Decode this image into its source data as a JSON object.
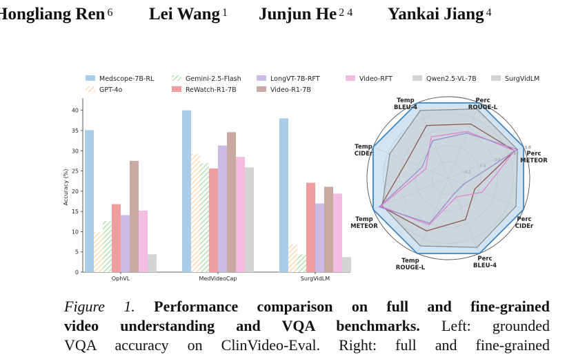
{
  "authors": [
    {
      "name": "Hongliang Ren",
      "aff": "6"
    },
    {
      "name": "Lei Wang",
      "aff": "1"
    },
    {
      "name": "Junjun He",
      "aff": "2 4"
    },
    {
      "name": "Yankai Jiang",
      "aff": "4"
    }
  ],
  "caption": {
    "label": "Figure 1.",
    "bold_text": "Performance comparison on full and fine-grained video understanding and VQA benchmarks.",
    "line1_bold": "Performance comparison on full and fine-grained",
    "line2_bold": "video understanding and VQA benchmarks.",
    "line2_rest": "Left: grounded",
    "line3": "VQA accuracy on ClinVideo-Eval. Right: full and fine-grained"
  },
  "colors": {
    "Medscope-7B-RL": "#a8cde8",
    "GPT-4o": "#fdd5a6",
    "Gemini-2.5-Flash": "#a6dca5",
    "ReWatch-R1-7B": "#ee9e9e",
    "LongVT-7B-RFT": "#cbbce5",
    "Video-R1-7B": "#c9aaa3",
    "Video-RFT": "#f3bde1",
    "Qwen2.5-VL-7B": "#d3d3d3",
    "SurgVidLM": "#d3d3d3"
  },
  "chart_data": [
    {
      "type": "bar",
      "title": "",
      "xlabel": "",
      "ylabel": "Accuracy (%)",
      "ylim": [
        0,
        42
      ],
      "yticks": [
        0,
        5,
        10,
        15,
        20,
        25,
        30,
        35,
        40
      ],
      "categories": [
        "OphVL",
        "MedVideoCap",
        "SurgVidLM"
      ],
      "legend": {
        "placement": "top",
        "columns": 6
      },
      "grid": false,
      "series": [
        {
          "name": "Medscope-7B-RL",
          "values": [
            35.1,
            40.0,
            38.0
          ],
          "hatch": false
        },
        {
          "name": "GPT-4o",
          "values": [
            9.9,
            29.2,
            6.9
          ],
          "hatch": true
        },
        {
          "name": "Gemini-2.5-Flash",
          "values": [
            12.6,
            26.9,
            4.4
          ],
          "hatch": true
        },
        {
          "name": "ReWatch-R1-7B",
          "values": [
            16.8,
            25.6,
            22.1
          ],
          "hatch": false
        },
        {
          "name": "LongVT-7B-RFT",
          "values": [
            14.1,
            31.3,
            17.0
          ],
          "hatch": false
        },
        {
          "name": "Video-R1-7B",
          "values": [
            27.5,
            34.6,
            21.1
          ],
          "hatch": false
        },
        {
          "name": "Video-RFT",
          "values": [
            15.2,
            28.5,
            19.4
          ],
          "hatch": false
        },
        {
          "name": "Qwen2.5-VL-7B",
          "values": [
            null,
            25.9,
            null
          ],
          "hatch": false
        },
        {
          "name": "SurgVidLM",
          "values": [
            4.4,
            null,
            3.7
          ],
          "hatch": false
        }
      ]
    },
    {
      "type": "radar",
      "title": "",
      "axes": [
        {
          "label": [
            "Perc",
            "ROUGE-L"
          ]
        },
        {
          "label": [
            "Perc",
            "METEOR"
          ]
        },
        {
          "label": [
            "Perc",
            "CIDEr"
          ]
        },
        {
          "label": [
            "Perc",
            "BLEU-4"
          ]
        },
        {
          "label": [
            "Temp",
            "ROUGE-L"
          ]
        },
        {
          "label": [
            "Temp",
            "METEOR"
          ]
        },
        {
          "label": [
            "Temp",
            "CIDEr"
          ]
        },
        {
          "label": [
            "Temp",
            "BLEU-4"
          ]
        }
      ],
      "rlim": [
        0,
        1.0
      ],
      "rticks": [
        "0.2",
        "0.4",
        "0.6",
        "0.8",
        "1.0"
      ],
      "series": [
        {
          "name": "Medscope-7B-RL",
          "values": [
            1.0,
            1.0,
            1.0,
            1.0,
            1.0,
            1.0,
            1.0,
            1.0
          ],
          "color": "#3d86c0",
          "fill": "#9cc3e0"
        },
        {
          "name": "Qwen2.5-VL-7B",
          "values": [
            0.92,
            0.92,
            0.9,
            0.92,
            0.9,
            0.88,
            0.78,
            0.9
          ],
          "color": "#888888",
          "fill": "#c6c6c6"
        },
        {
          "name": "Video-R1-7B",
          "values": [
            0.72,
            0.88,
            0.35,
            0.55,
            0.7,
            0.9,
            0.55,
            0.7
          ],
          "color": "#8a4e47",
          "fill": "none"
        },
        {
          "name": "Video-RFT",
          "values": [
            0.62,
            0.88,
            0.45,
            0.25,
            0.62,
            0.9,
            0.3,
            0.55
          ],
          "color": "#e27fd0",
          "fill": "none"
        },
        {
          "name": "LongVT-7B-RFT",
          "values": [
            0.6,
            0.92,
            0.2,
            0.2,
            0.6,
            0.92,
            0.35,
            0.5
          ],
          "color": "#9b87cf",
          "fill": "none"
        }
      ]
    }
  ]
}
